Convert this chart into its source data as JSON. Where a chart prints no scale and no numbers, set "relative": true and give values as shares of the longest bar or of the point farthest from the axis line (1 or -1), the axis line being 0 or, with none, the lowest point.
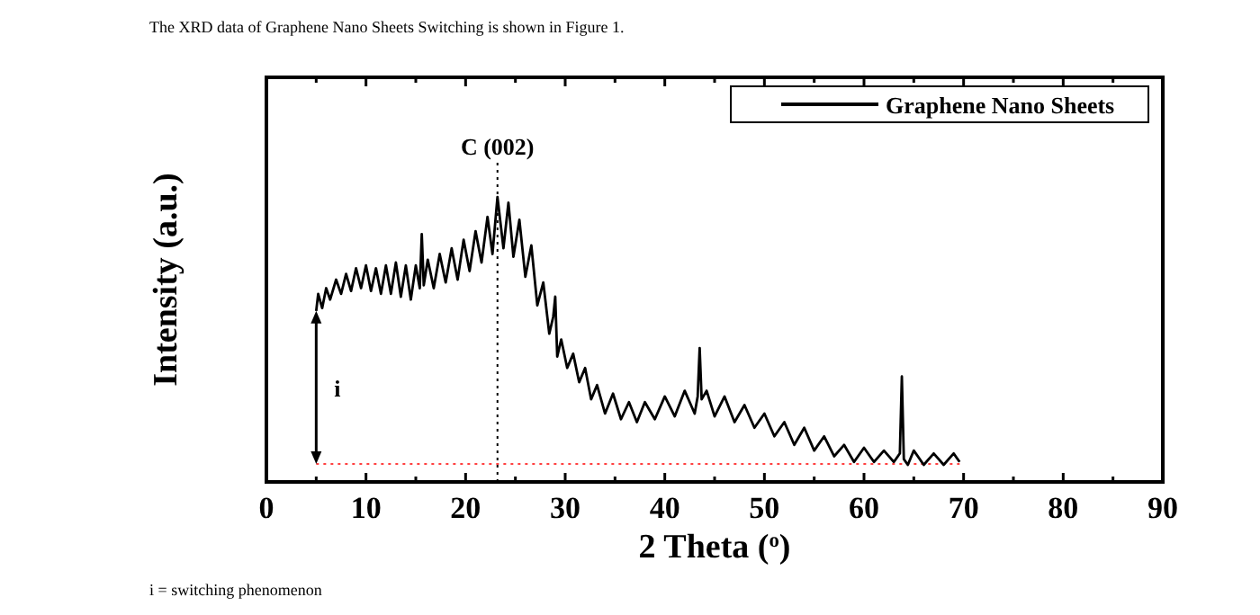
{
  "chart_data": {
    "type": "line",
    "relative": true,
    "xlabel": "2 Theta ($^{o}$)",
    "ylabel": "Intensity (a.u.)",
    "xlim": [
      0,
      90
    ],
    "xticks": [
      0,
      {
        "value": 5,
        "label": null
      },
      10,
      {
        "value": 15,
        "label": null
      },
      20,
      {
        "value": 25,
        "label": null
      },
      30,
      {
        "value": 35,
        "label": null
      },
      40,
      {
        "value": 45,
        "label": null
      },
      50,
      {
        "value": 55,
        "label": null
      },
      60,
      {
        "value": 65,
        "label": null
      },
      70,
      {
        "value": 75,
        "label": null
      },
      80,
      {
        "value": 85,
        "label": null
      },
      90
    ],
    "legend": "top right",
    "grid": false,
    "line_style": "solid",
    "marker": "none",
    "series": [
      {
        "name": "Graphene Nano Sheets",
        "color": "#000000",
        "x": [
          5,
          5.2,
          5.6,
          6,
          6.4,
          7,
          7.5,
          8,
          8.5,
          9,
          9.5,
          10,
          10.5,
          11,
          11.5,
          12,
          12.5,
          13,
          13.5,
          14,
          14.5,
          15,
          15.4,
          15.6,
          15.8,
          16.2,
          16.8,
          17.4,
          18,
          18.6,
          19.2,
          19.8,
          20.4,
          21,
          21.6,
          22.2,
          22.7,
          23.2,
          23.8,
          24.3,
          24.8,
          25.4,
          26,
          26.6,
          27.2,
          27.8,
          28.4,
          28.8,
          29,
          29.2,
          29.6,
          30.2,
          30.8,
          31.4,
          32,
          32.6,
          33.2,
          34,
          34.8,
          35.6,
          36.4,
          37.2,
          38,
          39,
          40,
          41,
          42,
          43,
          43.3,
          43.5,
          43.7,
          44.2,
          45,
          46,
          47,
          48,
          49,
          50,
          51,
          52,
          53,
          54,
          55,
          56,
          57,
          58,
          59,
          60,
          61,
          62,
          63,
          63.6,
          63.8,
          64,
          64.4,
          65,
          66,
          67,
          68,
          69,
          69.6
        ],
        "values": [
          0.6,
          0.66,
          0.61,
          0.68,
          0.64,
          0.71,
          0.66,
          0.73,
          0.67,
          0.75,
          0.68,
          0.76,
          0.67,
          0.75,
          0.66,
          0.76,
          0.66,
          0.77,
          0.65,
          0.76,
          0.64,
          0.76,
          0.68,
          0.87,
          0.69,
          0.78,
          0.68,
          0.8,
          0.7,
          0.82,
          0.71,
          0.85,
          0.74,
          0.88,
          0.77,
          0.93,
          0.8,
          1.0,
          0.82,
          0.98,
          0.79,
          0.92,
          0.72,
          0.83,
          0.62,
          0.7,
          0.52,
          0.58,
          0.65,
          0.44,
          0.5,
          0.4,
          0.45,
          0.35,
          0.4,
          0.29,
          0.34,
          0.24,
          0.31,
          0.22,
          0.28,
          0.21,
          0.28,
          0.22,
          0.3,
          0.23,
          0.32,
          0.24,
          0.3,
          0.47,
          0.29,
          0.32,
          0.23,
          0.3,
          0.21,
          0.27,
          0.19,
          0.24,
          0.16,
          0.21,
          0.13,
          0.19,
          0.11,
          0.16,
          0.09,
          0.13,
          0.07,
          0.12,
          0.07,
          0.11,
          0.07,
          0.1,
          0.37,
          0.08,
          0.06,
          0.11,
          0.06,
          0.1,
          0.06,
          0.1,
          0.07
        ]
      }
    ],
    "ref_lines": [
      {
        "axis": "x",
        "value": 23.2,
        "label": "C (002)",
        "color": "#000000",
        "line_style": "dotted"
      },
      {
        "axis": "y",
        "value": 0.063,
        "color": "#ff4040",
        "line_style": "dotted"
      }
    ],
    "annotations": [
      "The XRD data of Graphene Nano Sheets Switching is shown in Figure 1.",
      "i",
      "i = switching phenomenon"
    ]
  }
}
